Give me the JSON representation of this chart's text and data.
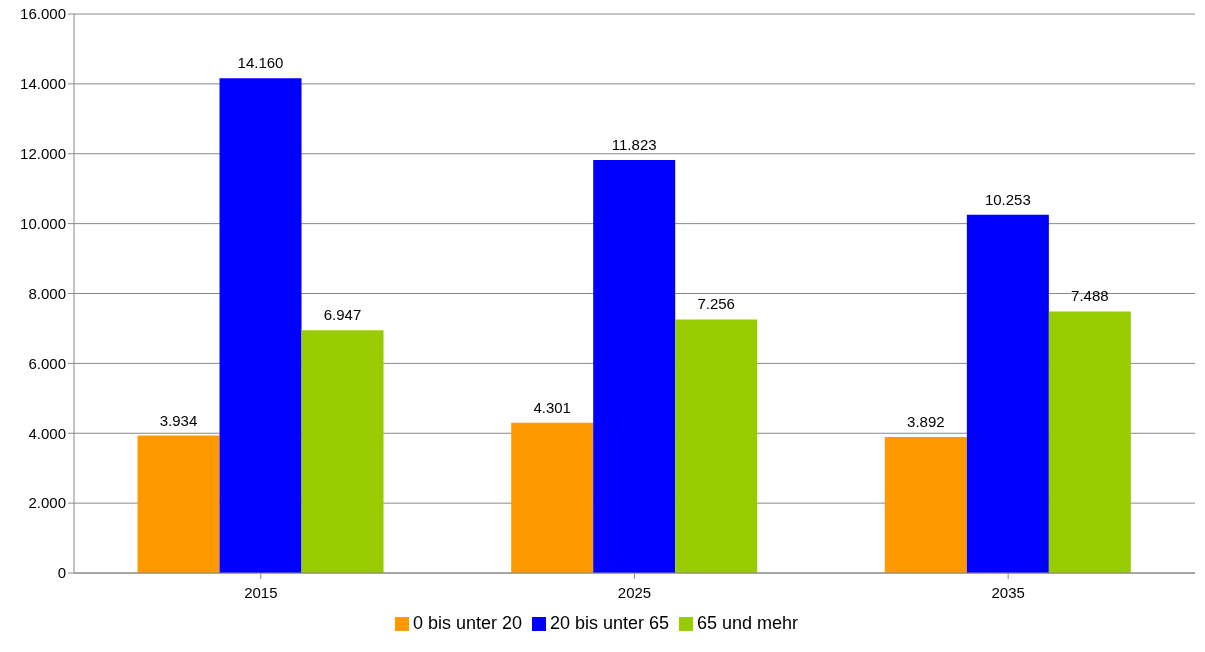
{
  "chart_data": {
    "type": "bar",
    "categories": [
      "2015",
      "2025",
      "2035"
    ],
    "series": [
      {
        "name": "0 bis unter 20",
        "color": "#ff9900",
        "values": [
          3934,
          4301,
          3892
        ],
        "value_labels": [
          "3.934",
          "4.301",
          "3.892"
        ]
      },
      {
        "name": "20 bis unter 65",
        "color": "#0000ff",
        "values": [
          14160,
          11823,
          10253
        ],
        "value_labels": [
          "14.160",
          "11.823",
          "10.253"
        ]
      },
      {
        "name": "65 und mehr",
        "color": "#99cc00",
        "values": [
          6947,
          7256,
          7488
        ],
        "value_labels": [
          "6.947",
          "7.256",
          "7.488"
        ]
      }
    ],
    "ylim": [
      0,
      16000
    ],
    "yticks": [
      0,
      {
        "value": 2000,
        "label": "2.000"
      },
      {
        "value": 4000,
        "label": "4.000"
      },
      {
        "value": 6000,
        "label": "6.000"
      },
      {
        "value": 8000,
        "label": "8.000"
      },
      {
        "value": 10000,
        "label": "10.000"
      },
      {
        "value": 12000,
        "label": "12.000"
      },
      {
        "value": 14000,
        "label": "14.000"
      },
      {
        "value": 16000,
        "label": "16.000"
      }
    ],
    "grid": "y",
    "legend": "bottom"
  }
}
